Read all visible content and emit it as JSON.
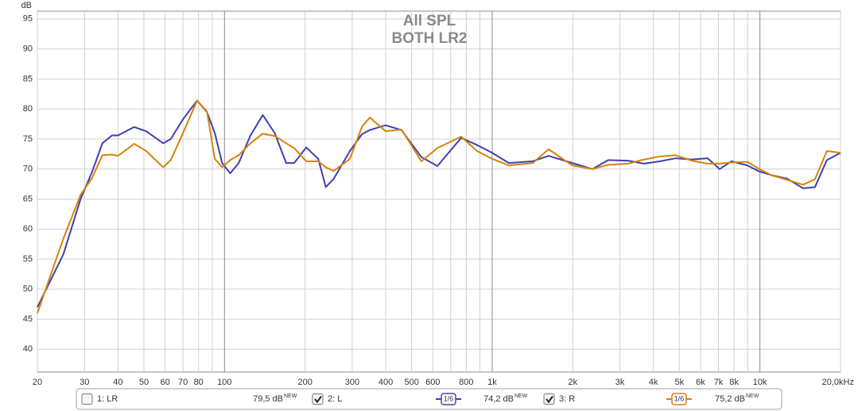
{
  "chart_data": {
    "type": "line",
    "title": "All SPL",
    "subtitle": "BOTH LR2",
    "y_label": "dB",
    "x_log": true,
    "grid": true,
    "xlim": [
      20,
      20000
    ],
    "ylim": [
      36.2,
      96.3
    ],
    "yticks": [
      40,
      45,
      50,
      55,
      60,
      65,
      70,
      75,
      80,
      85,
      90,
      95
    ],
    "xticks": [
      20,
      30,
      40,
      50,
      60,
      70,
      80,
      100,
      200,
      300,
      400,
      500,
      600,
      800,
      {
        "value": 1000,
        "label": "1k"
      },
      {
        "value": 2000,
        "label": "2k"
      },
      {
        "value": 3000,
        "label": "3k"
      },
      {
        "value": 4000,
        "label": "4k"
      },
      {
        "value": 5000,
        "label": "5k"
      },
      {
        "value": 6000,
        "label": "6k"
      },
      {
        "value": 7000,
        "label": "7k"
      },
      {
        "value": 8000,
        "label": "8k"
      },
      {
        "value": 10000,
        "label": "10k"
      },
      {
        "value": 20000,
        "label": "20,0kHz"
      }
    ],
    "xgrid_unlabeled": [
      90,
      700,
      900,
      9000
    ],
    "x": [
      20,
      25,
      29,
      32,
      35,
      38,
      40,
      46,
      51,
      59,
      63,
      70,
      79,
      86,
      92,
      98,
      105,
      113,
      125,
      139,
      154,
      170,
      182,
      202,
      224,
      239,
      256,
      294,
      326,
      349,
      400,
      458,
      544,
      624,
      766,
      878,
      1000,
      1154,
      1417,
      1624,
      1994,
      2367,
      2714,
      3219,
      3691,
      4233,
      4852,
      5564,
      6380,
      7069,
      7832,
      8981,
      9951,
      11020,
      12640,
      14495,
      16057,
      17794,
      20000
    ],
    "series": [
      {
        "name": "2: L",
        "color": "#4040b4",
        "values": [
          47,
          55.8,
          65,
          69.5,
          74.3,
          75.6,
          75.6,
          77,
          76.3,
          74.3,
          75,
          78.3,
          81.4,
          79.5,
          76,
          71,
          69.3,
          71,
          75.6,
          79,
          76,
          71,
          71,
          73.6,
          71.7,
          67,
          68.4,
          73,
          75.8,
          76.5,
          77.3,
          76.5,
          72,
          70.5,
          75.2,
          74,
          72.7,
          71,
          71.3,
          72.2,
          71,
          70,
          71.5,
          71.4,
          70.9,
          71.3,
          71.8,
          71.6,
          71.8,
          70,
          71.3,
          70.6,
          69.6,
          69,
          68.4,
          66.8,
          67,
          71.5,
          72.7
        ]
      },
      {
        "name": "3: R",
        "color": "#d8820a",
        "values": [
          46,
          58.4,
          65.7,
          68.5,
          72.3,
          72.4,
          72.2,
          74.2,
          73,
          70.3,
          71.5,
          76,
          81.4,
          79.6,
          71.7,
          70.3,
          71.5,
          72.3,
          74.3,
          75.9,
          75.5,
          74.3,
          73.5,
          71.3,
          71.3,
          70.3,
          69.7,
          71.7,
          77,
          78.6,
          76.3,
          76.6,
          71.3,
          73.5,
          75.4,
          73,
          71.7,
          70.6,
          71,
          73.3,
          70.6,
          70,
          70.7,
          70.9,
          71.6,
          72.1,
          72.3,
          71.4,
          70.9,
          70.9,
          71.1,
          71.2,
          70,
          69,
          68.2,
          67.4,
          68.3,
          73,
          72.7
        ]
      }
    ],
    "legend": {
      "items": [
        {
          "name": "1: LR",
          "checked": false,
          "level": "79,5 dB",
          "badge": "NEW",
          "color": "#a01818"
        },
        {
          "checked": true,
          "smoothing": "1/6",
          "level": "74,2 dB",
          "badge": "NEW"
        },
        {
          "checked": true,
          "smoothing": "1/6",
          "level": "75,2 dB",
          "badge": "NEW"
        }
      ]
    }
  }
}
